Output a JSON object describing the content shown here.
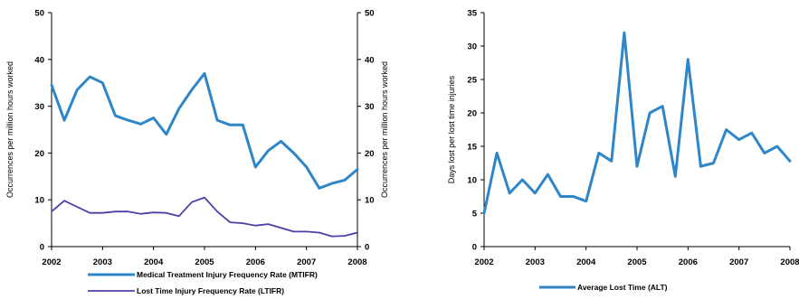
{
  "colors": {
    "mtifr": "#2e86c8",
    "ltifr": "#4b3fa8",
    "alt": "#2e86c8",
    "axis": "#000000"
  },
  "chart_data": [
    {
      "type": "line",
      "xlabel": "",
      "ylabel": "Occurrences per million hours worked",
      "ylabel_right": "Occurrences per million hours worked",
      "xlim": [
        2002,
        2008
      ],
      "ylim": [
        0,
        50
      ],
      "x_ticks": [
        2002,
        2003,
        2004,
        2005,
        2006,
        2007,
        2008
      ],
      "y_ticks": [
        0,
        10,
        20,
        30,
        40,
        50
      ],
      "grid": false,
      "legend": "bottom",
      "series": [
        {
          "name": "Medical Treatment Injury Frequency Rate (MTIFR)",
          "x": [
            2002.0,
            2002.25,
            2002.5,
            2002.75,
            2003.0,
            2003.25,
            2003.5,
            2003.75,
            2004.0,
            2004.25,
            2004.5,
            2004.75,
            2005.0,
            2005.25,
            2005.5,
            2005.75,
            2006.0,
            2006.25,
            2006.5,
            2006.75,
            2007.0,
            2007.25,
            2007.5,
            2007.75,
            2008.0
          ],
          "y": [
            34.5,
            27.0,
            33.5,
            36.3,
            35.0,
            28.0,
            27.0,
            26.2,
            27.5,
            24.0,
            29.5,
            33.5,
            37.0,
            27.0,
            26.0,
            26.0,
            17.0,
            20.5,
            22.5,
            20.0,
            17.0,
            12.5,
            13.5,
            14.2,
            16.5
          ]
        },
        {
          "name": "Lost Time Injury Frequency Rate (LTIFR)",
          "x": [
            2002.0,
            2002.25,
            2002.5,
            2002.75,
            2003.0,
            2003.25,
            2003.5,
            2003.75,
            2004.0,
            2004.25,
            2004.5,
            2004.75,
            2005.0,
            2005.25,
            2005.5,
            2005.75,
            2006.0,
            2006.25,
            2006.5,
            2006.75,
            2007.0,
            2007.25,
            2007.5,
            2007.75,
            2008.0
          ],
          "y": [
            7.5,
            9.8,
            8.5,
            7.2,
            7.2,
            7.5,
            7.5,
            7.0,
            7.3,
            7.2,
            6.5,
            9.5,
            10.5,
            7.5,
            5.2,
            5.0,
            4.5,
            4.8,
            4.0,
            3.2,
            3.2,
            3.0,
            2.2,
            2.3,
            3.0
          ]
        }
      ]
    },
    {
      "type": "line",
      "xlabel": "",
      "ylabel": "Days lost per lost time injuries",
      "xlim": [
        2002,
        2008
      ],
      "ylim": [
        0,
        35
      ],
      "x_ticks": [
        2002,
        2003,
        2004,
        2005,
        2006,
        2007,
        2008
      ],
      "y_ticks": [
        0,
        5,
        10,
        15,
        20,
        25,
        30,
        35
      ],
      "grid": false,
      "legend": "bottom",
      "series": [
        {
          "name": "Average Lost Time (ALT)",
          "x": [
            2002.0,
            2002.25,
            2002.5,
            2002.75,
            2003.0,
            2003.25,
            2003.5,
            2003.75,
            2004.0,
            2004.25,
            2004.5,
            2004.75,
            2005.0,
            2005.25,
            2005.5,
            2005.75,
            2006.0,
            2006.25,
            2006.5,
            2006.75,
            2007.0,
            2007.25,
            2007.5,
            2007.75,
            2008.0
          ],
          "y": [
            5.0,
            14.0,
            8.0,
            10.0,
            8.0,
            10.8,
            7.5,
            7.5,
            6.8,
            14.0,
            12.8,
            32.0,
            12.0,
            20.0,
            21.0,
            10.5,
            28.0,
            12.0,
            12.5,
            17.5,
            16.0,
            17.0,
            14.0,
            15.0,
            12.8
          ]
        }
      ]
    }
  ]
}
